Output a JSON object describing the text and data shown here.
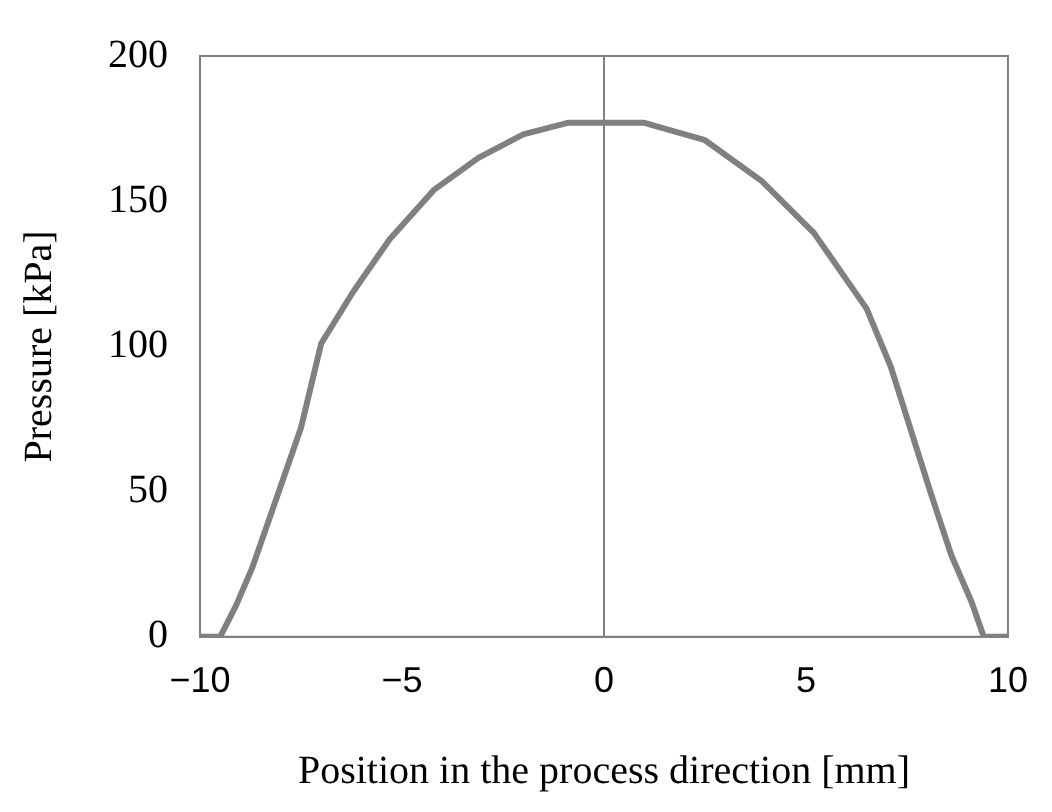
{
  "chart_data": {
    "type": "line",
    "xlabel": "Position in the process direction [mm]",
    "ylabel": "Pressure [kPa]",
    "x": [
      -10,
      -9.5,
      -9.1,
      -8.7,
      -8.1,
      -7.5,
      -7,
      -6.2,
      -5.3,
      -4.2,
      -3.1,
      -2,
      -0.9,
      0,
      1,
      2.5,
      3.9,
      5.2,
      6.5,
      7.1,
      7.6,
      8.1,
      8.6,
      9.1,
      9.4,
      10
    ],
    "series": [
      {
        "color": "#808080",
        "values": [
          0,
          0,
          11,
          24,
          48,
          72,
          101,
          119,
          137,
          154,
          165,
          173,
          177,
          177,
          177,
          171,
          157,
          139,
          113,
          93,
          71,
          49,
          28,
          12,
          0,
          0
        ]
      }
    ],
    "xlim": [
      -10,
      10
    ],
    "xticks": [
      -10,
      -5,
      0,
      5,
      10
    ],
    "ylim": [
      0,
      200
    ],
    "yticks": [
      0,
      50,
      100,
      150,
      200
    ],
    "grid": false,
    "legend": false,
    "marker": "none",
    "line_style": "solid",
    "ref_lines": [
      {
        "axis": "x",
        "value": 0,
        "color": "#808080"
      }
    ]
  }
}
